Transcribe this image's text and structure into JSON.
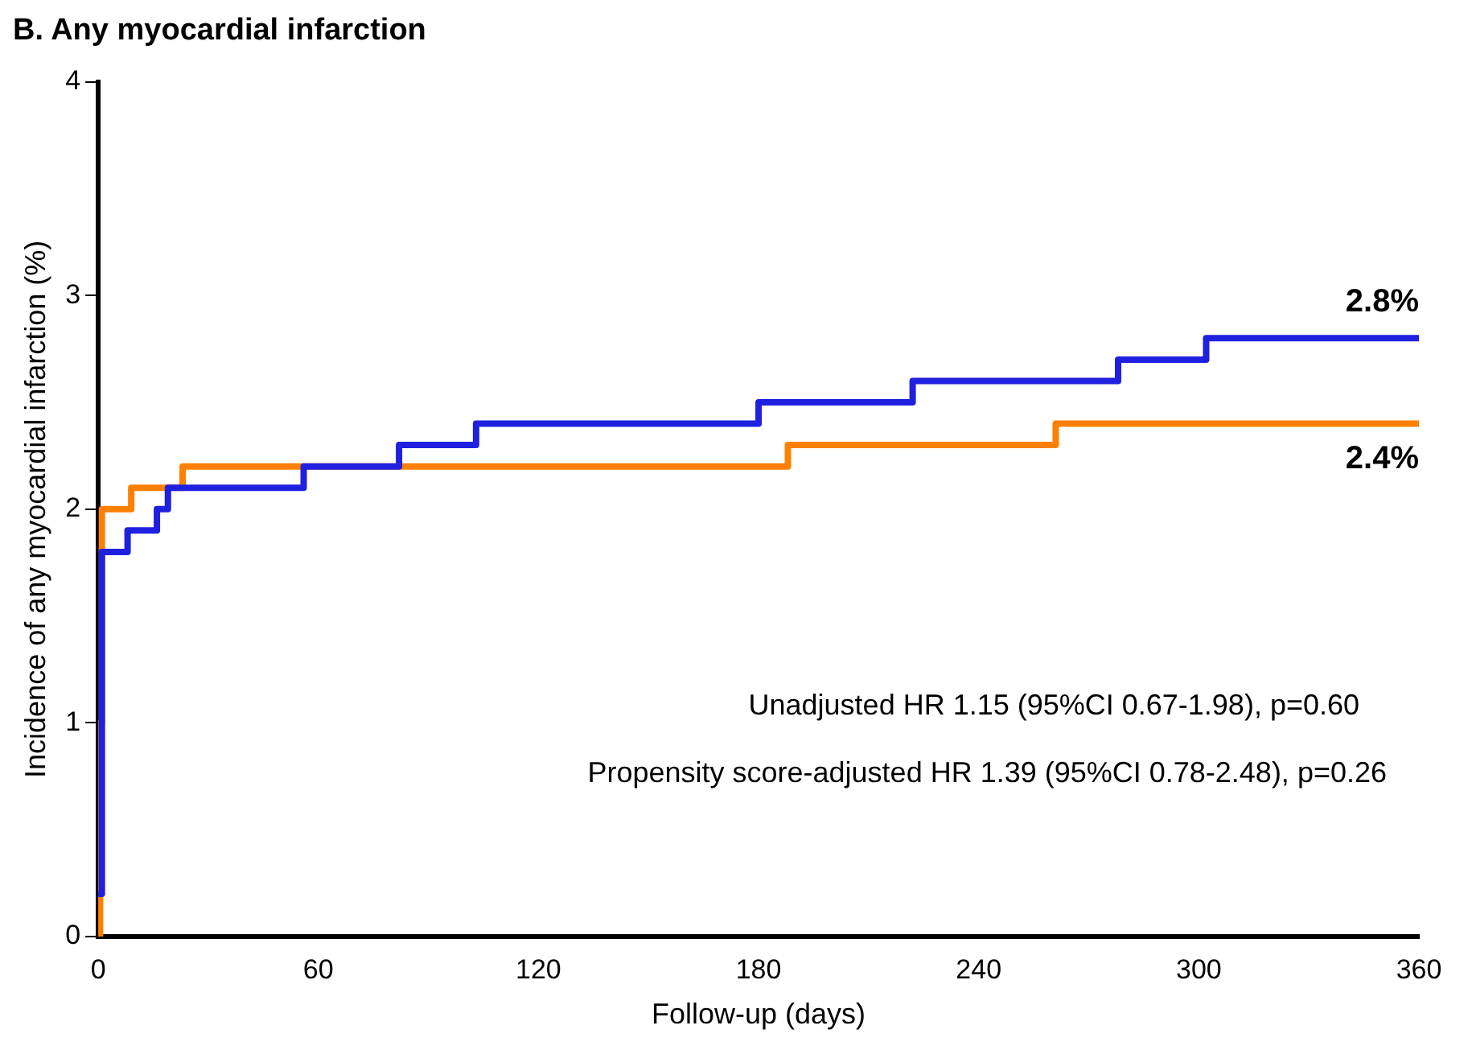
{
  "chart_data": {
    "type": "step",
    "title": "B. Any myocardial infarction",
    "xlabel": "Follow-up (days)",
    "ylabel": "Incidence of any myocardial infarction (%)",
    "series": [
      {
        "color": "#2020e0",
        "x": [
          0,
          1,
          8,
          16,
          19,
          56,
          82,
          103,
          180,
          222,
          278,
          302,
          360
        ],
        "values": [
          0.2,
          1.8,
          1.9,
          2.0,
          2.1,
          2.2,
          2.3,
          2.4,
          2.5,
          2.6,
          2.7,
          2.8,
          2.8
        ]
      },
      {
        "color": "#ff8000",
        "x": [
          0,
          0.5,
          1,
          9,
          23,
          188,
          261,
          360
        ],
        "values": [
          0,
          1.0,
          2.0,
          2.1,
          2.2,
          2.3,
          2.4,
          2.4
        ]
      }
    ],
    "xlim": [
      0,
      360
    ],
    "xticks": [
      0,
      60,
      120,
      180,
      240,
      300,
      360
    ],
    "ylim": [
      0,
      4
    ],
    "yticks": [
      0,
      1,
      2,
      3,
      4
    ],
    "grid": false,
    "legend": false,
    "annotations": [
      {
        "text": "2.8%",
        "x": 360,
        "y": 2.8
      },
      {
        "text": "2.4%",
        "x": 360,
        "y": 2.4
      },
      "Unadjusted HR 1.15 (95%CI 0.67-1.98), p=0.60",
      "Propensity score-adjusted HR 1.39 (95%CI 0.78-2.48), p=0.26"
    ]
  }
}
